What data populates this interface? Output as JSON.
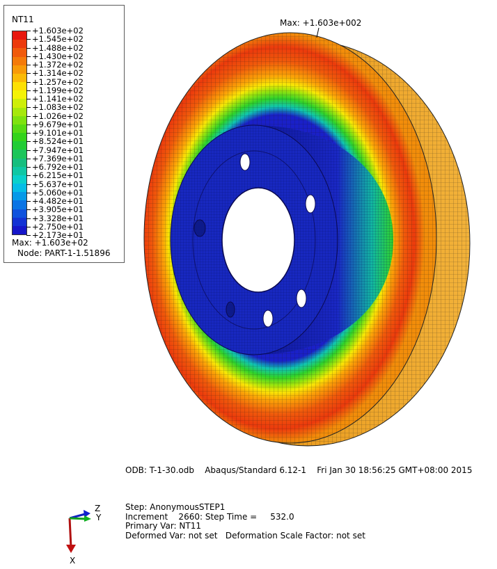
{
  "legend": {
    "title": "NT11",
    "labels": [
      "+1.603e+02",
      "+1.545e+02",
      "+1.488e+02",
      "+1.430e+02",
      "+1.372e+02",
      "+1.314e+02",
      "+1.257e+02",
      "+1.199e+02",
      "+1.141e+02",
      "+1.083e+02",
      "+1.026e+02",
      "+9.679e+01",
      "+9.101e+01",
      "+8.524e+01",
      "+7.947e+01",
      "+7.369e+01",
      "+6.792e+01",
      "+6.215e+01",
      "+5.637e+01",
      "+5.060e+01",
      "+4.482e+01",
      "+3.905e+01",
      "+3.328e+01",
      "+2.750e+01",
      "+2.173e+01"
    ],
    "colors": [
      "#e8170e",
      "#ec3a0c",
      "#f05a0b",
      "#f47a09",
      "#f89a08",
      "#fbba06",
      "#fde004",
      "#f4f205",
      "#ceee08",
      "#a6e80b",
      "#7ee20e",
      "#57da13",
      "#34d31a",
      "#22cc35",
      "#1cc55a",
      "#16be7e",
      "#10c7a4",
      "#0ad0cb",
      "#05bde6",
      "#0599e8",
      "#0a74e4",
      "#0f52dd",
      "#1332d4",
      "#1616c9"
    ],
    "max_text": "Max: +1.603e+02",
    "node_text": "Node: PART-1-1.51896"
  },
  "viewport": {
    "max_label": "Max: +1.603e+002"
  },
  "info": {
    "odb": "ODB: T-1-30.odb    Abaqus/Standard 6.12-1    Fri Jan 30 18:56:25 GMT+08:00 2015",
    "step": "Step: AnonymousSTEP1",
    "increment": "Increment    2660: Step Time =     532.0",
    "primary_var": "Primary Var: NT11",
    "deformed_var": "Deformed Var: not set   Deformation Scale Factor: not set"
  },
  "triad": {
    "z": "Z",
    "y": "Y",
    "x": "X"
  }
}
